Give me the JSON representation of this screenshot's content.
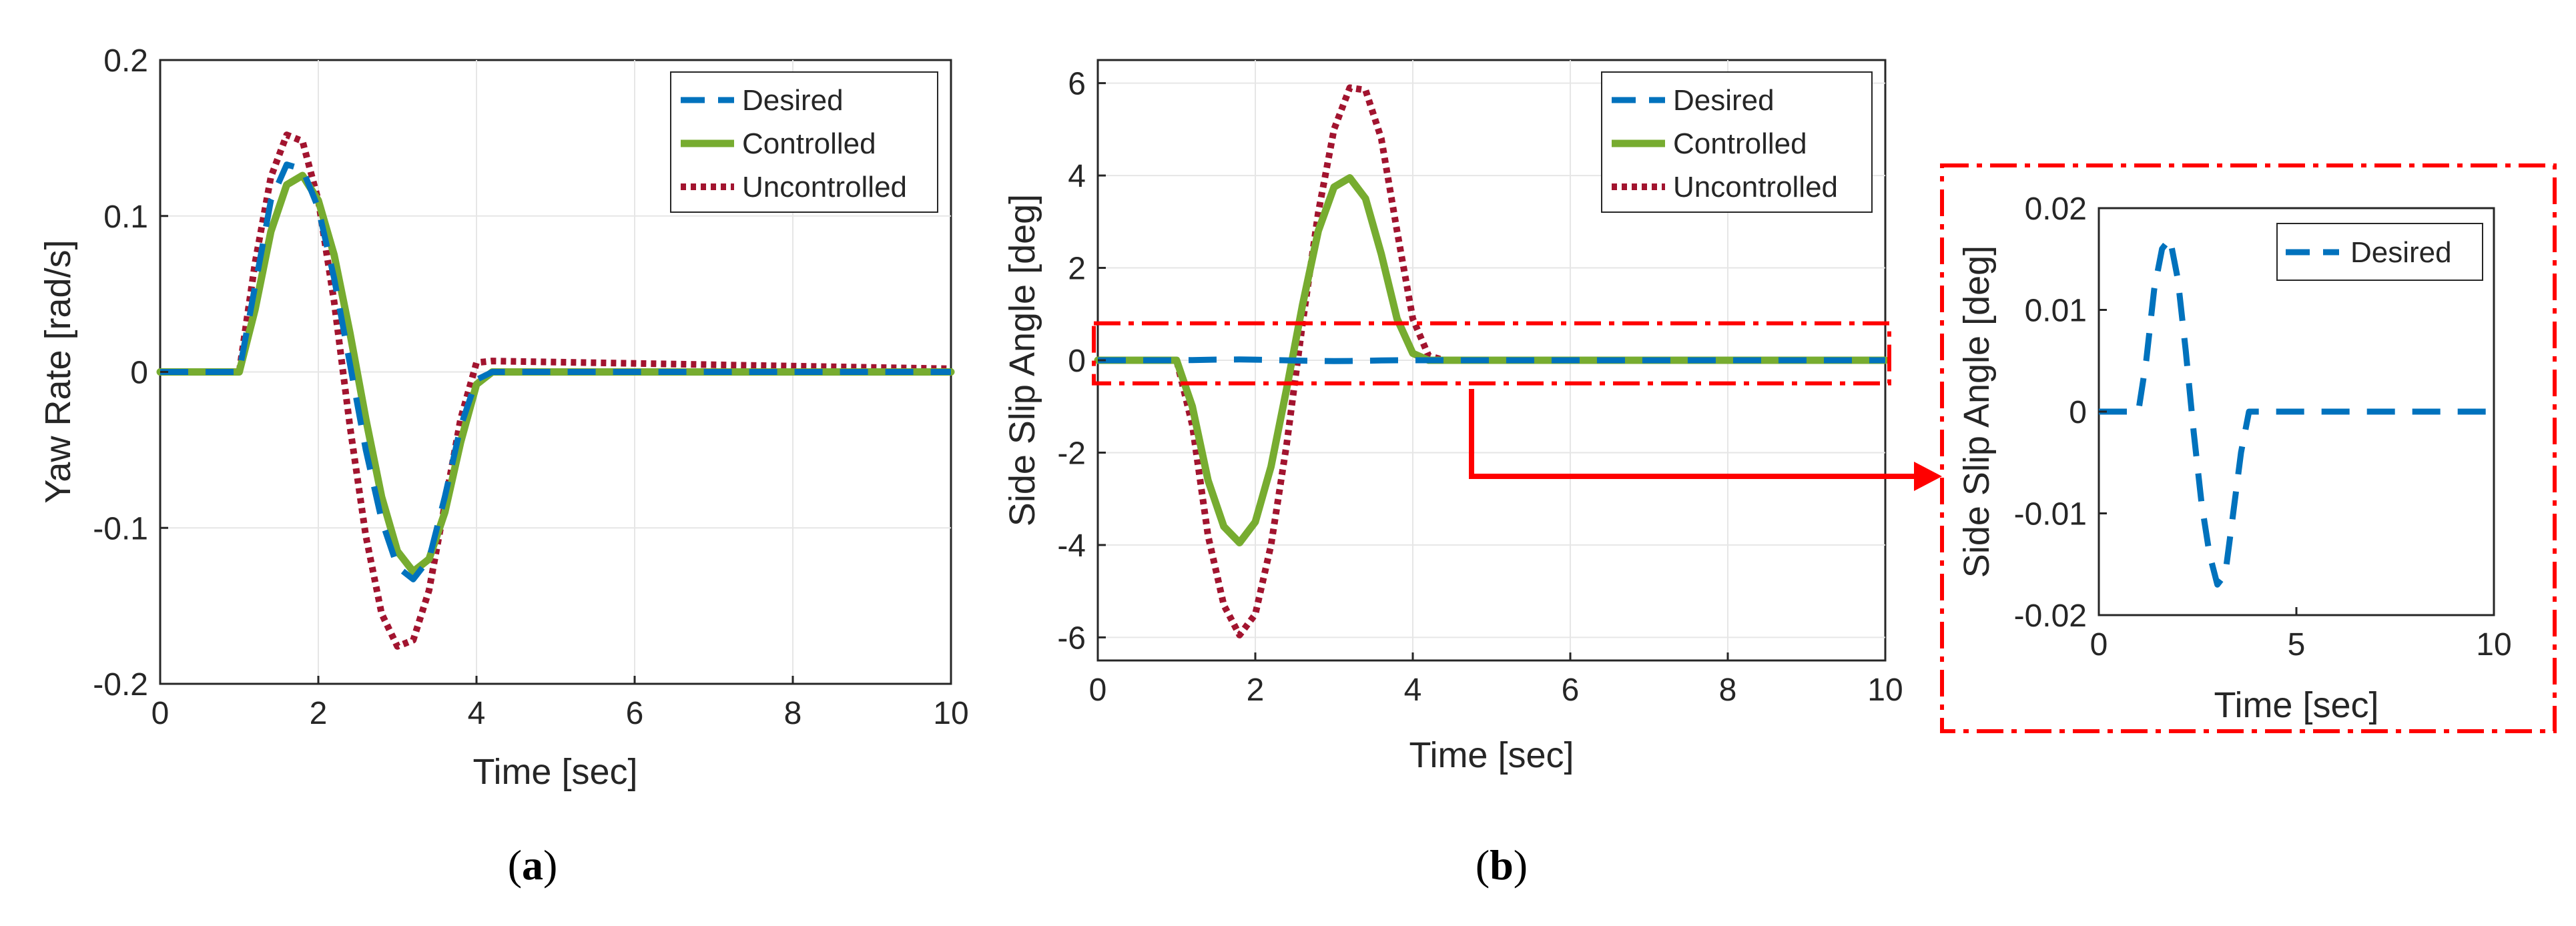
{
  "colors": {
    "desired": "#0072BD",
    "controlled": "#77AC30",
    "uncontrolled": "#A2142F",
    "highlight": "#FF0000",
    "grid": "#E6E6E6",
    "axis": "#262626"
  },
  "chart_data": [
    {
      "id": "a",
      "type": "line",
      "panel_label": "(a)",
      "panel_letter": "a",
      "xlabel": "Time [sec]",
      "ylabel": "Yaw Rate [rad/s]",
      "xlim": [
        0,
        10
      ],
      "ylim": [
        -0.2,
        0.2
      ],
      "xticks": [
        0,
        2,
        4,
        6,
        8,
        10
      ],
      "yticks": [
        -0.2,
        -0.1,
        0,
        0.1,
        0.2
      ],
      "xtick_labels": [
        "0",
        "2",
        "4",
        "6",
        "8",
        "10"
      ],
      "ytick_labels": [
        "-0.2",
        "-0.1",
        "0",
        "0.1",
        "0.2"
      ],
      "grid": true,
      "legend_position": "top-right",
      "series": [
        {
          "name": "Desired",
          "style": "dashed",
          "x": [
            0,
            1.0,
            1.2,
            1.4,
            1.6,
            1.8,
            2.0,
            2.2,
            2.4,
            2.6,
            2.8,
            3.0,
            3.2,
            3.4,
            3.6,
            3.8,
            4.0,
            4.2,
            10
          ],
          "y": [
            0,
            0,
            0.055,
            0.11,
            0.133,
            0.13,
            0.105,
            0.06,
            0.005,
            -0.05,
            -0.095,
            -0.125,
            -0.133,
            -0.12,
            -0.08,
            -0.035,
            -0.005,
            0,
            0
          ]
        },
        {
          "name": "Controlled",
          "style": "solid",
          "x": [
            0,
            1.0,
            1.2,
            1.4,
            1.6,
            1.8,
            2.0,
            2.2,
            2.4,
            2.6,
            2.8,
            3.0,
            3.2,
            3.4,
            3.6,
            3.8,
            4.0,
            4.2,
            10
          ],
          "y": [
            0,
            0,
            0.04,
            0.09,
            0.12,
            0.126,
            0.11,
            0.075,
            0.025,
            -0.03,
            -0.08,
            -0.115,
            -0.128,
            -0.12,
            -0.09,
            -0.045,
            -0.008,
            0,
            0
          ]
        },
        {
          "name": "Uncontrolled",
          "style": "dotted",
          "x": [
            0,
            1.0,
            1.2,
            1.4,
            1.6,
            1.8,
            2.0,
            2.2,
            2.4,
            2.6,
            2.8,
            3.0,
            3.2,
            3.4,
            3.6,
            3.8,
            4.0,
            4.2,
            10
          ],
          "y": [
            0,
            0,
            0.07,
            0.125,
            0.152,
            0.148,
            0.11,
            0.045,
            -0.035,
            -0.105,
            -0.155,
            -0.176,
            -0.172,
            -0.14,
            -0.085,
            -0.03,
            0.006,
            0.007,
            0.002
          ]
        }
      ]
    },
    {
      "id": "b",
      "type": "line",
      "panel_label": "(b)",
      "panel_letter": "b",
      "xlabel": "Time [sec]",
      "ylabel": "Side Slip Angle [deg]",
      "xlim": [
        0,
        10
      ],
      "ylim": [
        -6.5,
        6.5
      ],
      "xticks": [
        0,
        2,
        4,
        6,
        8,
        10
      ],
      "yticks": [
        -6,
        -4,
        -2,
        0,
        2,
        4,
        6
      ],
      "xtick_labels": [
        "0",
        "2",
        "4",
        "6",
        "8",
        "10"
      ],
      "ytick_labels": [
        "-6",
        "-4",
        "-2",
        "0",
        "2",
        "4",
        "6"
      ],
      "grid": true,
      "legend_position": "top-right",
      "series": [
        {
          "name": "Desired",
          "style": "dashed",
          "x": [
            0,
            1.0,
            1.2,
            1.4,
            1.6,
            1.8,
            2.0,
            2.2,
            2.4,
            2.6,
            2.8,
            3.0,
            3.2,
            3.4,
            3.6,
            3.8,
            4.0,
            4.2,
            10
          ],
          "y": [
            0,
            0,
            0.005,
            0.012,
            0.016,
            0.017,
            0.013,
            0.006,
            -0.002,
            -0.009,
            -0.014,
            -0.017,
            -0.016,
            -0.01,
            -0.004,
            0,
            0,
            0,
            0
          ]
        },
        {
          "name": "Controlled",
          "style": "solid",
          "x": [
            0,
            1.0,
            1.2,
            1.4,
            1.6,
            1.8,
            2.0,
            2.2,
            2.4,
            2.6,
            2.8,
            3.0,
            3.2,
            3.4,
            3.6,
            3.8,
            4.0,
            4.2,
            4.4,
            10
          ],
          "y": [
            0,
            0,
            -1.0,
            -2.6,
            -3.6,
            -3.95,
            -3.5,
            -2.3,
            -0.6,
            1.2,
            2.8,
            3.75,
            3.95,
            3.5,
            2.3,
            0.9,
            0.15,
            0,
            0,
            0
          ]
        },
        {
          "name": "Uncontrolled",
          "style": "dotted",
          "x": [
            0,
            1.0,
            1.2,
            1.4,
            1.6,
            1.8,
            2.0,
            2.2,
            2.4,
            2.6,
            2.8,
            3.0,
            3.2,
            3.4,
            3.6,
            3.8,
            4.0,
            4.2,
            4.4,
            10
          ],
          "y": [
            0,
            0,
            -1.4,
            -3.8,
            -5.3,
            -5.95,
            -5.5,
            -4.0,
            -1.8,
            0.8,
            3.2,
            5.0,
            5.9,
            5.85,
            4.8,
            2.8,
            0.9,
            0.1,
            0,
            0
          ]
        }
      ],
      "highlight_region": {
        "x": [
          0,
          10
        ],
        "y": [
          -0.5,
          0.8
        ]
      }
    },
    {
      "id": "b-inset",
      "type": "line",
      "xlabel": "Time [sec]",
      "ylabel": "Side Slip Angle [deg]",
      "xlim": [
        0,
        10
      ],
      "ylim": [
        -0.02,
        0.02
      ],
      "xticks": [
        0,
        5,
        10
      ],
      "yticks": [
        -0.02,
        -0.01,
        0,
        0.01,
        0.02
      ],
      "xtick_labels": [
        "0",
        "5",
        "10"
      ],
      "ytick_labels": [
        "-0.02",
        "-0.01",
        "0",
        "0.01",
        "0.02"
      ],
      "grid": false,
      "legend_position": "top-right",
      "series": [
        {
          "name": "Desired",
          "style": "dashed",
          "x": [
            0,
            1.0,
            1.2,
            1.4,
            1.6,
            1.8,
            2.0,
            2.2,
            2.4,
            2.6,
            2.8,
            3.0,
            3.2,
            3.4,
            3.6,
            3.8,
            4.0,
            4.2,
            10
          ],
          "y": [
            0,
            0,
            0.005,
            0.012,
            0.016,
            0.017,
            0.013,
            0.006,
            -0.002,
            -0.009,
            -0.014,
            -0.017,
            -0.016,
            -0.01,
            -0.004,
            0,
            0,
            0,
            0
          ]
        }
      ]
    }
  ]
}
